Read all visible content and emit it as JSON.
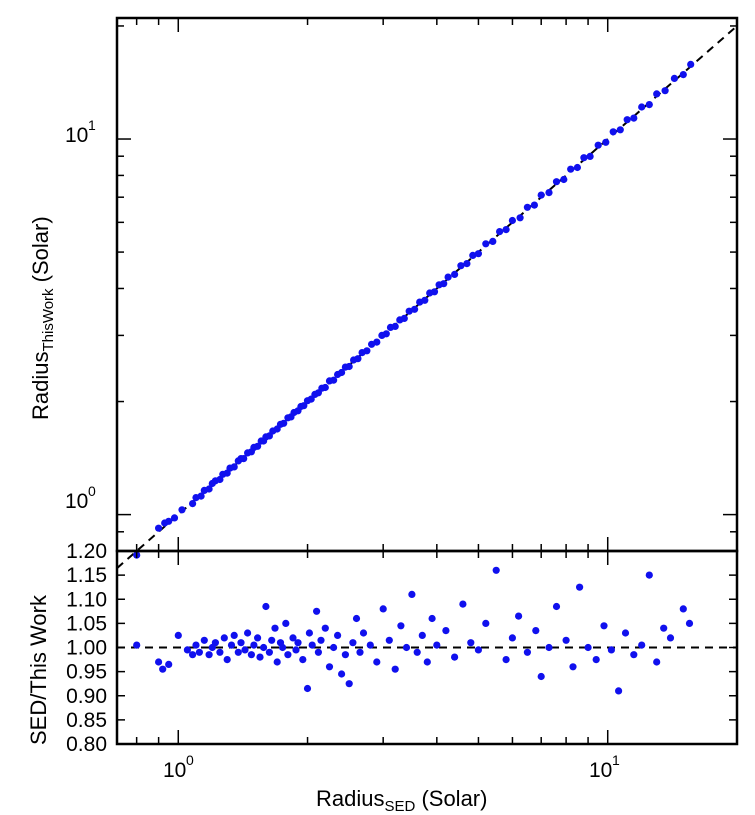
{
  "chart_data": [
    {
      "type": "scatter",
      "panel": "top",
      "xlabel": "",
      "ylabel_main": "Radius",
      "ylabel_sub": "ThisWork",
      "ylabel_unit": " (Solar)",
      "xscale": "log",
      "yscale": "log",
      "xlim": [
        0.72,
        20
      ],
      "ylim": [
        0.8,
        21
      ],
      "ytick_labels": [
        {
          "base": "10",
          "exp": "0",
          "value": 1
        },
        {
          "base": "10",
          "exp": "1",
          "value": 10
        }
      ],
      "reference_line": {
        "style": "dashed",
        "slope": 1,
        "color": "#000000"
      },
      "marker_color": "#1010ee",
      "x": [
        0.8,
        0.9,
        0.93,
        0.95,
        0.98,
        1.02,
        1.08,
        1.1,
        1.13,
        1.15,
        1.18,
        1.2,
        1.22,
        1.25,
        1.27,
        1.3,
        1.32,
        1.35,
        1.38,
        1.4,
        1.42,
        1.45,
        1.48,
        1.5,
        1.53,
        1.56,
        1.58,
        1.6,
        1.63,
        1.66,
        1.7,
        1.73,
        1.76,
        1.8,
        1.83,
        1.86,
        1.9,
        1.93,
        1.96,
        2.0,
        2.04,
        2.08,
        2.12,
        2.16,
        2.2,
        2.25,
        2.3,
        2.35,
        2.4,
        2.45,
        2.5,
        2.56,
        2.62,
        2.68,
        2.75,
        2.82,
        2.9,
        2.98,
        3.05,
        3.12,
        3.2,
        3.28,
        3.36,
        3.45,
        3.55,
        3.65,
        3.75,
        3.85,
        3.95,
        4.05,
        4.15,
        4.25,
        4.4,
        4.55,
        4.7,
        4.85,
        5.0,
        5.2,
        5.4,
        5.6,
        5.8,
        6.0,
        6.25,
        6.5,
        6.75,
        7.0,
        7.3,
        7.6,
        7.9,
        8.2,
        8.5,
        8.8,
        9.1,
        9.5,
        9.9,
        10.3,
        10.7,
        11.1,
        11.5,
        12.0,
        12.5,
        13.0,
        13.6,
        14.3,
        15.0,
        15.6
      ],
      "y": [
        0.78,
        0.92,
        0.95,
        0.96,
        0.98,
        1.03,
        1.07,
        1.11,
        1.12,
        1.16,
        1.17,
        1.21,
        1.23,
        1.24,
        1.28,
        1.29,
        1.33,
        1.34,
        1.39,
        1.41,
        1.41,
        1.46,
        1.47,
        1.51,
        1.52,
        1.57,
        1.57,
        1.61,
        1.62,
        1.67,
        1.69,
        1.74,
        1.75,
        1.81,
        1.82,
        1.87,
        1.89,
        1.94,
        1.95,
        2.01,
        2.03,
        2.09,
        2.11,
        2.17,
        2.18,
        2.27,
        2.28,
        2.36,
        2.39,
        2.47,
        2.48,
        2.58,
        2.6,
        2.7,
        2.73,
        2.84,
        2.88,
        3.0,
        3.03,
        3.15,
        3.17,
        3.3,
        3.33,
        3.48,
        3.52,
        3.68,
        3.72,
        3.89,
        3.92,
        4.09,
        4.12,
        4.29,
        4.36,
        4.6,
        4.66,
        4.9,
        4.95,
        5.26,
        5.34,
        5.67,
        5.74,
        6.07,
        6.17,
        6.58,
        6.67,
        7.09,
        7.2,
        7.7,
        7.8,
        8.31,
        8.4,
        8.92,
        8.99,
        9.63,
        9.8,
        10.45,
        10.58,
        11.26,
        11.37,
        12.17,
        12.35,
        13.19,
        13.45,
        14.5,
        14.84,
        15.8
      ]
    },
    {
      "type": "scatter",
      "panel": "bottom",
      "xlabel_main": "Radius",
      "xlabel_sub": "SED",
      "xlabel_unit": " (Solar)",
      "ylabel": "SED/This Work",
      "xscale": "log",
      "xlim": [
        0.72,
        20
      ],
      "ylim": [
        0.8,
        1.2
      ],
      "ytick_labels": [
        "0.80",
        "0.85",
        "0.90",
        "0.95",
        "1.00",
        "1.05",
        "1.10",
        "1.15",
        "1.20"
      ],
      "xtick_labels": [
        {
          "base": "10",
          "exp": "0",
          "value": 1
        },
        {
          "base": "10",
          "exp": "1",
          "value": 10
        }
      ],
      "reference_line": {
        "style": "dashed",
        "y": 1.0,
        "color": "#000000"
      },
      "marker_color": "#1010ee",
      "x": [
        0.8,
        0.9,
        0.92,
        0.95,
        1.0,
        1.05,
        1.08,
        1.1,
        1.12,
        1.15,
        1.18,
        1.2,
        1.22,
        1.25,
        1.28,
        1.3,
        1.33,
        1.35,
        1.38,
        1.4,
        1.43,
        1.45,
        1.48,
        1.5,
        1.53,
        1.55,
        1.58,
        1.6,
        1.63,
        1.65,
        1.68,
        1.7,
        1.73,
        1.75,
        1.78,
        1.8,
        1.85,
        1.88,
        1.9,
        1.95,
        2.0,
        2.02,
        2.05,
        2.1,
        2.12,
        2.15,
        2.2,
        2.25,
        2.3,
        2.35,
        2.4,
        2.45,
        2.5,
        2.55,
        2.6,
        2.65,
        2.7,
        2.8,
        2.9,
        3.0,
        3.1,
        3.2,
        3.3,
        3.4,
        3.5,
        3.6,
        3.7,
        3.8,
        3.9,
        4.0,
        4.2,
        4.4,
        4.6,
        4.8,
        5.0,
        5.2,
        5.5,
        5.8,
        6.0,
        6.2,
        6.5,
        6.8,
        7.0,
        7.3,
        7.6,
        8.0,
        8.3,
        8.6,
        9.0,
        9.4,
        9.8,
        10.2,
        10.6,
        11.0,
        11.5,
        12.0,
        12.5,
        13.0,
        13.5,
        14.0,
        15.0,
        15.5
      ],
      "y": [
        1.005,
        0.97,
        0.955,
        0.965,
        1.025,
        0.995,
        0.985,
        1.005,
        0.99,
        1.015,
        0.985,
        1.0,
        1.01,
        0.99,
        1.02,
        0.975,
        1.005,
        1.025,
        0.99,
        1.01,
        0.995,
        1.03,
        0.985,
        1.005,
        1.02,
        0.98,
        1.0,
        1.085,
        0.99,
        1.015,
        1.04,
        0.97,
        1.01,
        1.0,
        1.05,
        0.985,
        1.02,
        0.995,
        1.01,
        0.975,
        0.915,
        1.03,
        1.005,
        1.075,
        0.99,
        1.015,
        1.04,
        0.96,
        1.0,
        1.025,
        0.945,
        0.985,
        0.925,
        1.01,
        1.06,
        0.99,
        1.03,
        1.005,
        0.97,
        1.08,
        1.015,
        0.955,
        1.045,
        1.0,
        1.11,
        0.99,
        1.025,
        0.97,
        1.06,
        1.005,
        1.035,
        0.98,
        1.09,
        1.01,
        0.995,
        1.05,
        1.16,
        0.975,
        1.02,
        1.065,
        0.99,
        1.035,
        0.94,
        1.0,
        1.085,
        1.015,
        0.96,
        1.125,
        1.0,
        0.975,
        1.045,
        0.995,
        0.91,
        1.03,
        0.985,
        1.005,
        1.15,
        0.97,
        1.04,
        1.02,
        1.08,
        1.05
      ]
    }
  ]
}
